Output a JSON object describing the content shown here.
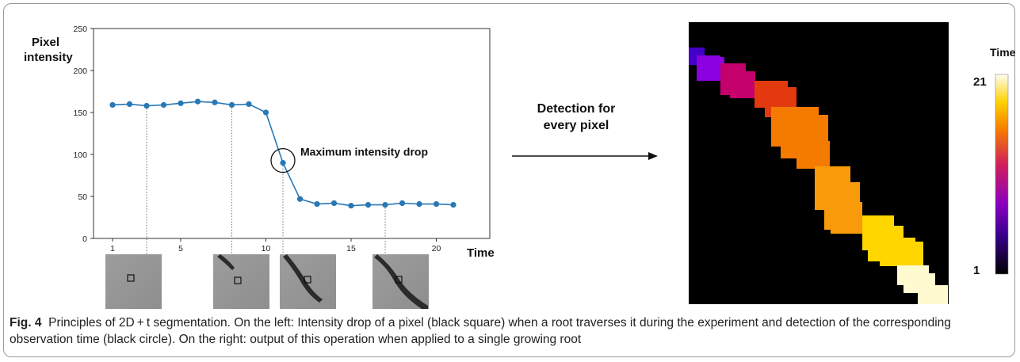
{
  "figure": {
    "chart_data": {
      "type": "line",
      "ylabel": "Pixel intensity",
      "xlabel": "Time",
      "ylim": [
        0,
        250
      ],
      "xlim": [
        1,
        21
      ],
      "x_ticks": [
        1,
        5,
        10,
        15,
        20
      ],
      "y_ticks": [
        0,
        50,
        100,
        150,
        200,
        250
      ],
      "series": [
        {
          "x": [
            1,
            2,
            3,
            4,
            5,
            6,
            7,
            8,
            9,
            10,
            11,
            12,
            13,
            14,
            15,
            16,
            17,
            18,
            19,
            20,
            21
          ],
          "values": [
            159,
            160,
            158,
            159,
            161,
            163,
            162,
            159,
            160,
            150,
            90,
            47,
            41,
            42,
            39,
            40,
            40,
            42,
            41,
            41,
            40
          ],
          "color": "#2878b5"
        }
      ],
      "annotation": {
        "text": "Maximum intensity drop",
        "x": 11,
        "y": 90
      },
      "thumbnails_at_x": [
        3,
        8,
        11,
        17
      ]
    },
    "arrow_label_line1": "Detection for",
    "arrow_label_line2": "every pixel",
    "colorbar": {
      "title": "Time",
      "max_label": "21",
      "min_label": "1"
    },
    "heatmap_colors": [
      "#4400c8",
      "#8a00e0",
      "#c4006c",
      "#e23a0e",
      "#f57a00",
      "#f99a0a",
      "#ffd600",
      "#fffad0"
    ],
    "caption": {
      "figno": "Fig. 4",
      "text": "Principles of 2D + t segmentation. On the left: Intensity drop of a pixel (black square) when a root traverses it during the experiment and detection of the corresponding observation time (black circle). On the right: output of this operation when applied to a single growing root"
    }
  }
}
